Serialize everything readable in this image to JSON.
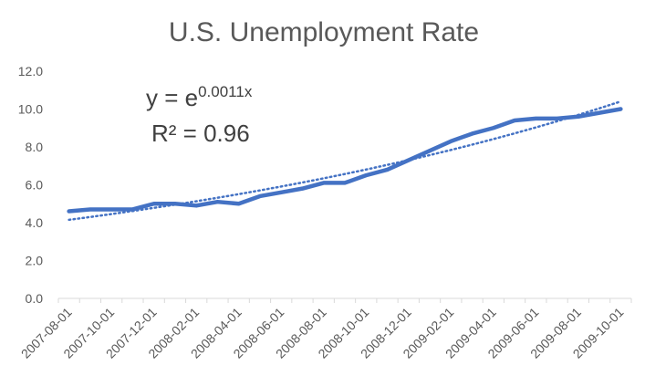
{
  "chart_data": {
    "type": "line",
    "title": "U.S. Unemployment Rate",
    "xlabel": "",
    "ylabel": "",
    "ylim": [
      0,
      12
    ],
    "y_ticks": [
      "0.0",
      "2.0",
      "4.0",
      "6.0",
      "8.0",
      "10.0",
      "12.0"
    ],
    "x": [
      "2007-08-01",
      "2007-09-01",
      "2007-10-01",
      "2007-11-01",
      "2007-12-01",
      "2008-01-01",
      "2008-02-01",
      "2008-03-01",
      "2008-04-01",
      "2008-05-01",
      "2008-06-01",
      "2008-07-01",
      "2008-08-01",
      "2008-09-01",
      "2008-10-01",
      "2008-11-01",
      "2008-12-01",
      "2009-01-01",
      "2009-02-01",
      "2009-03-01",
      "2009-04-01",
      "2009-05-01",
      "2009-06-01",
      "2009-07-01",
      "2009-08-01",
      "2009-09-01",
      "2009-10-01"
    ],
    "x_tick_labels": [
      "2007-08-01",
      "2007-10-01",
      "2007-12-01",
      "2008-02-01",
      "2008-04-01",
      "2008-06-01",
      "2008-08-01",
      "2008-10-01",
      "2008-12-01",
      "2009-02-01",
      "2009-04-01",
      "2009-06-01",
      "2009-08-01",
      "2009-10-01"
    ],
    "series": [
      {
        "values": [
          4.6,
          4.7,
          4.7,
          4.7,
          5.0,
          5.0,
          4.9,
          5.1,
          5.0,
          5.4,
          5.6,
          5.8,
          6.1,
          6.1,
          6.5,
          6.8,
          7.3,
          7.8,
          8.3,
          8.7,
          9.0,
          9.4,
          9.5,
          9.5,
          9.6,
          9.8,
          10.0
        ],
        "color": "#4472C4",
        "style": "solid"
      }
    ],
    "trendline": {
      "type": "exponential",
      "color": "#4472C4",
      "style": "dotted",
      "equation_base": "y = e",
      "equation_exponent": "0.0011x",
      "r_squared": "R² = 0.96",
      "start": 4.15,
      "end": 10.4
    },
    "grid": false,
    "legend": "none"
  }
}
